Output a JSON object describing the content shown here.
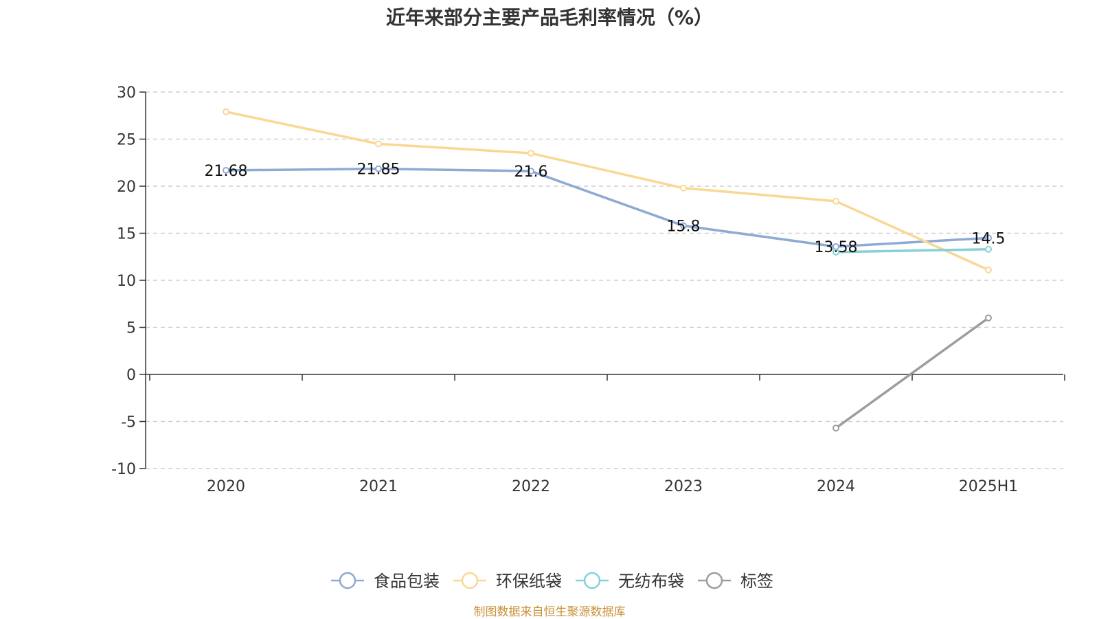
{
  "chart_data": {
    "type": "line",
    "title": "近年来部分主要产品毛利率情况（%）",
    "categories": [
      "2020",
      "2021",
      "2022",
      "2023",
      "2024",
      "2025H1"
    ],
    "ylim": [
      -10,
      30
    ],
    "yticks": [
      30,
      25,
      20,
      15,
      10,
      5,
      0,
      -5,
      -10
    ],
    "grid": true,
    "legend_position": "bottom",
    "series": [
      {
        "name": "食品包装",
        "color": "#8eaad4",
        "values": [
          21.68,
          21.85,
          21.6,
          15.8,
          13.58,
          14.5
        ],
        "labels": [
          "21.68",
          "21.85",
          "21.6",
          "15.8",
          "13.58",
          "14.5"
        ]
      },
      {
        "name": "环保纸袋",
        "color": "#f9d895",
        "values": [
          27.9,
          24.5,
          23.5,
          19.8,
          18.4,
          11.1
        ],
        "labels": []
      },
      {
        "name": "无纺布袋",
        "color": "#86d1d4",
        "values": [
          null,
          null,
          null,
          null,
          13.0,
          13.3
        ],
        "labels": []
      },
      {
        "name": "标签",
        "color": "#9d9d9d",
        "values": [
          null,
          null,
          null,
          null,
          -5.7,
          6.0
        ],
        "labels": []
      }
    ]
  },
  "source": "制图数据来自恒生聚源数据库"
}
